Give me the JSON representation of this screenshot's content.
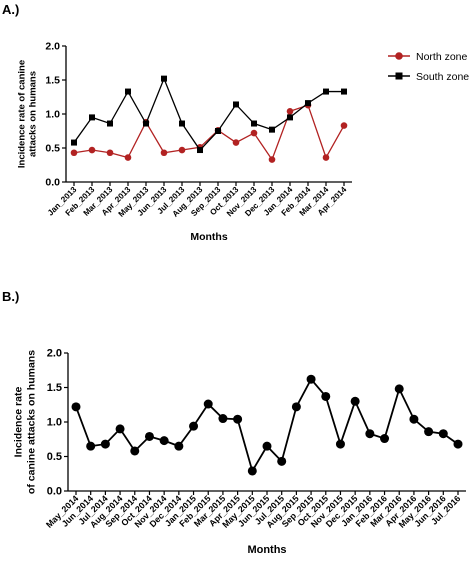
{
  "chart_data": [
    {
      "panel_label": "A.)",
      "type": "line",
      "xlabel": "Months",
      "ylabel": "Incidence rate of canine attacks on humans",
      "ylim": [
        0,
        2.0
      ],
      "yticks": [
        "0.0",
        "0.5",
        "1.0",
        "1.5",
        "2.0"
      ],
      "grid": false,
      "legend_position": "top-right",
      "categories": [
        "Jan_2013",
        "Feb_2013",
        "Mar_2013",
        "Apr_2013",
        "May_2013",
        "Jun_2013",
        "Jul_2013",
        "Aug_2013",
        "Sep_2013",
        "Oct_2013",
        "Nov_2013",
        "Dec_2013",
        "Jan_2014",
        "Feb_2014",
        "Mar_2014",
        "Apr_2014"
      ],
      "series": [
        {
          "name": "North zone",
          "color": "#b22222",
          "marker": "circle",
          "values": [
            0.43,
            0.47,
            0.43,
            0.36,
            0.88,
            0.43,
            0.47,
            0.51,
            0.76,
            0.58,
            0.72,
            0.33,
            1.04,
            1.13,
            0.36,
            0.83
          ]
        },
        {
          "name": "South zone",
          "color": "#000000",
          "marker": "square",
          "values": [
            0.58,
            0.95,
            0.86,
            1.33,
            0.86,
            1.52,
            0.86,
            0.47,
            0.75,
            1.14,
            0.86,
            0.77,
            0.95,
            1.16,
            1.33,
            1.33
          ]
        }
      ]
    },
    {
      "panel_label": "B.)",
      "type": "line",
      "xlabel": "Months",
      "ylabel": "Incidence rate of canine attacks on humans",
      "ylim": [
        0,
        2.0
      ],
      "yticks": [
        "0.0",
        "0.5",
        "1.0",
        "1.5",
        "2.0"
      ],
      "grid": false,
      "categories": [
        "May_2014",
        "Jun_2014",
        "Jul_2014",
        "Aug_2014",
        "Sep_2014",
        "Oct_2014",
        "Nov_2014",
        "Dec_2014",
        "Jan_2015",
        "Feb_2015",
        "Mar_2015",
        "Apr_2015",
        "May_2015",
        "Jun_2015",
        "Jul_2015",
        "Aug_2015",
        "Sep_2015",
        "Oct_2015",
        "Nov_2015",
        "Dec_2015",
        "Jan_2016",
        "Feb_2016",
        "Mar_2016",
        "Apr_2016",
        "May_2016",
        "Jun_2016",
        "Jul_2016"
      ],
      "series": [
        {
          "color": "#000000",
          "marker": "circle",
          "values": [
            1.22,
            0.65,
            0.68,
            0.9,
            0.58,
            0.79,
            0.73,
            0.65,
            0.94,
            1.26,
            1.05,
            1.04,
            0.29,
            0.65,
            0.43,
            1.22,
            1.62,
            1.37,
            0.68,
            1.3,
            0.83,
            0.76,
            1.48,
            1.04,
            0.86,
            0.83,
            0.68
          ]
        }
      ]
    }
  ]
}
